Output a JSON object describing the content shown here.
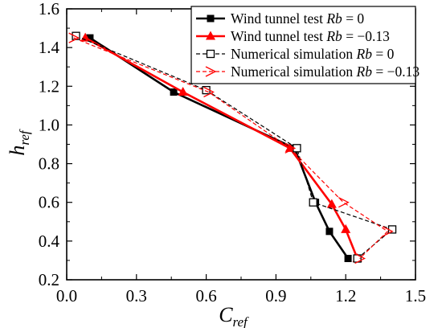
{
  "chart_data": {
    "type": "line",
    "xlabel": {
      "main": "C",
      "sub": "ref"
    },
    "ylabel": {
      "main": "h",
      "sub": "ref"
    },
    "xlim": [
      0.0,
      1.5
    ],
    "ylim": [
      0.2,
      1.6
    ],
    "xticks": [
      "0.0",
      "0.3",
      "0.6",
      "0.9",
      "1.2",
      "1.5"
    ],
    "yticks": [
      "0.2",
      "0.4",
      "0.6",
      "0.8",
      "1.0",
      "1.2",
      "1.4",
      "1.6"
    ],
    "grid": false,
    "legend_position": "top-right",
    "series": [
      {
        "name": "Wind tunnel test Rb = 0",
        "label_plain": "Wind tunnel test ",
        "label_italic": "Rb",
        "label_tail": " = 0",
        "color": "#000000",
        "line_style": "solid",
        "marker": "filled-square",
        "points": [
          [
            0.1,
            1.45
          ],
          [
            0.46,
            1.17
          ],
          [
            0.98,
            0.88
          ],
          [
            1.07,
            0.6
          ],
          [
            1.13,
            0.45
          ],
          [
            1.21,
            0.31
          ]
        ]
      },
      {
        "name": "Wind tunnel test Rb = −0.13",
        "label_plain": "Wind tunnel test ",
        "label_italic": "Rb",
        "label_tail": " = −0.13",
        "color": "#ff0000",
        "line_style": "solid",
        "marker": "filled-triangle",
        "points": [
          [
            0.08,
            1.45
          ],
          [
            0.5,
            1.17
          ],
          [
            0.96,
            0.88
          ],
          [
            1.14,
            0.59
          ],
          [
            1.2,
            0.46
          ],
          [
            1.25,
            0.31
          ]
        ]
      },
      {
        "name": "Numerical simulation Rb = 0",
        "label_plain": "Numerical simulation ",
        "label_italic": "Rb",
        "label_tail": " = 0",
        "color": "#000000",
        "line_style": "dashed",
        "marker": "open-square",
        "points": [
          [
            0.04,
            1.46
          ],
          [
            0.6,
            1.18
          ],
          [
            0.99,
            0.88
          ],
          [
            1.06,
            0.6
          ],
          [
            1.4,
            0.46
          ],
          [
            1.25,
            0.31
          ]
        ]
      },
      {
        "name": "Numerical simulation Rb = −0.13",
        "label_plain": "Numerical simulation ",
        "label_italic": "Rb",
        "label_tail": " = −0.13",
        "color": "#ff0000",
        "line_style": "dashed",
        "marker": "open-arrow",
        "points": [
          [
            0.03,
            1.45
          ],
          [
            0.61,
            1.17
          ],
          [
            0.96,
            0.88
          ],
          [
            1.19,
            0.6
          ],
          [
            1.38,
            0.45
          ],
          [
            1.26,
            0.31
          ]
        ]
      }
    ]
  }
}
